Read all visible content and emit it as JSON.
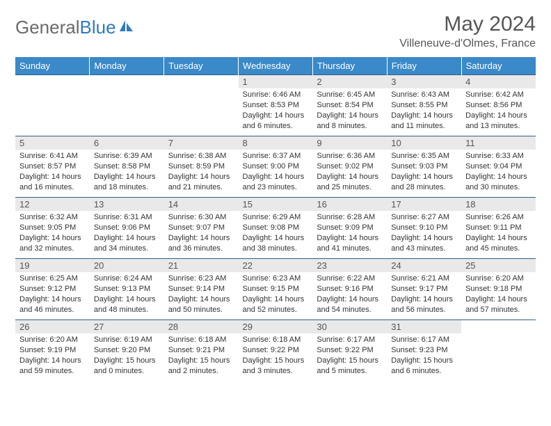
{
  "brand": {
    "part1": "General",
    "part2": "Blue"
  },
  "title": "May 2024",
  "location": "Villeneuve-d'Olmes, France",
  "colors": {
    "header_bg": "#3a89c9",
    "header_text": "#ffffff",
    "daynum_bg": "#e9e9e9",
    "border": "#2f5f86",
    "brand_gray": "#6a6a6a",
    "brand_blue": "#2f7ac0"
  },
  "dayNames": [
    "Sunday",
    "Monday",
    "Tuesday",
    "Wednesday",
    "Thursday",
    "Friday",
    "Saturday"
  ],
  "weeks": [
    [
      {
        "empty": true
      },
      {
        "empty": true
      },
      {
        "empty": true
      },
      {
        "num": "1",
        "sunrise": "6:46 AM",
        "sunset": "8:53 PM",
        "daylight": "14 hours and 6 minutes."
      },
      {
        "num": "2",
        "sunrise": "6:45 AM",
        "sunset": "8:54 PM",
        "daylight": "14 hours and 8 minutes."
      },
      {
        "num": "3",
        "sunrise": "6:43 AM",
        "sunset": "8:55 PM",
        "daylight": "14 hours and 11 minutes."
      },
      {
        "num": "4",
        "sunrise": "6:42 AM",
        "sunset": "8:56 PM",
        "daylight": "14 hours and 13 minutes."
      }
    ],
    [
      {
        "num": "5",
        "sunrise": "6:41 AM",
        "sunset": "8:57 PM",
        "daylight": "14 hours and 16 minutes."
      },
      {
        "num": "6",
        "sunrise": "6:39 AM",
        "sunset": "8:58 PM",
        "daylight": "14 hours and 18 minutes."
      },
      {
        "num": "7",
        "sunrise": "6:38 AM",
        "sunset": "8:59 PM",
        "daylight": "14 hours and 21 minutes."
      },
      {
        "num": "8",
        "sunrise": "6:37 AM",
        "sunset": "9:00 PM",
        "daylight": "14 hours and 23 minutes."
      },
      {
        "num": "9",
        "sunrise": "6:36 AM",
        "sunset": "9:02 PM",
        "daylight": "14 hours and 25 minutes."
      },
      {
        "num": "10",
        "sunrise": "6:35 AM",
        "sunset": "9:03 PM",
        "daylight": "14 hours and 28 minutes."
      },
      {
        "num": "11",
        "sunrise": "6:33 AM",
        "sunset": "9:04 PM",
        "daylight": "14 hours and 30 minutes."
      }
    ],
    [
      {
        "num": "12",
        "sunrise": "6:32 AM",
        "sunset": "9:05 PM",
        "daylight": "14 hours and 32 minutes."
      },
      {
        "num": "13",
        "sunrise": "6:31 AM",
        "sunset": "9:06 PM",
        "daylight": "14 hours and 34 minutes."
      },
      {
        "num": "14",
        "sunrise": "6:30 AM",
        "sunset": "9:07 PM",
        "daylight": "14 hours and 36 minutes."
      },
      {
        "num": "15",
        "sunrise": "6:29 AM",
        "sunset": "9:08 PM",
        "daylight": "14 hours and 38 minutes."
      },
      {
        "num": "16",
        "sunrise": "6:28 AM",
        "sunset": "9:09 PM",
        "daylight": "14 hours and 41 minutes."
      },
      {
        "num": "17",
        "sunrise": "6:27 AM",
        "sunset": "9:10 PM",
        "daylight": "14 hours and 43 minutes."
      },
      {
        "num": "18",
        "sunrise": "6:26 AM",
        "sunset": "9:11 PM",
        "daylight": "14 hours and 45 minutes."
      }
    ],
    [
      {
        "num": "19",
        "sunrise": "6:25 AM",
        "sunset": "9:12 PM",
        "daylight": "14 hours and 46 minutes."
      },
      {
        "num": "20",
        "sunrise": "6:24 AM",
        "sunset": "9:13 PM",
        "daylight": "14 hours and 48 minutes."
      },
      {
        "num": "21",
        "sunrise": "6:23 AM",
        "sunset": "9:14 PM",
        "daylight": "14 hours and 50 minutes."
      },
      {
        "num": "22",
        "sunrise": "6:23 AM",
        "sunset": "9:15 PM",
        "daylight": "14 hours and 52 minutes."
      },
      {
        "num": "23",
        "sunrise": "6:22 AM",
        "sunset": "9:16 PM",
        "daylight": "14 hours and 54 minutes."
      },
      {
        "num": "24",
        "sunrise": "6:21 AM",
        "sunset": "9:17 PM",
        "daylight": "14 hours and 56 minutes."
      },
      {
        "num": "25",
        "sunrise": "6:20 AM",
        "sunset": "9:18 PM",
        "daylight": "14 hours and 57 minutes."
      }
    ],
    [
      {
        "num": "26",
        "sunrise": "6:20 AM",
        "sunset": "9:19 PM",
        "daylight": "14 hours and 59 minutes."
      },
      {
        "num": "27",
        "sunrise": "6:19 AM",
        "sunset": "9:20 PM",
        "daylight": "15 hours and 0 minutes."
      },
      {
        "num": "28",
        "sunrise": "6:18 AM",
        "sunset": "9:21 PM",
        "daylight": "15 hours and 2 minutes."
      },
      {
        "num": "29",
        "sunrise": "6:18 AM",
        "sunset": "9:22 PM",
        "daylight": "15 hours and 3 minutes."
      },
      {
        "num": "30",
        "sunrise": "6:17 AM",
        "sunset": "9:22 PM",
        "daylight": "15 hours and 5 minutes."
      },
      {
        "num": "31",
        "sunrise": "6:17 AM",
        "sunset": "9:23 PM",
        "daylight": "15 hours and 6 minutes."
      },
      {
        "empty": true
      }
    ]
  ],
  "labels": {
    "sunrise": "Sunrise:",
    "sunset": "Sunset:",
    "daylight": "Daylight:"
  }
}
